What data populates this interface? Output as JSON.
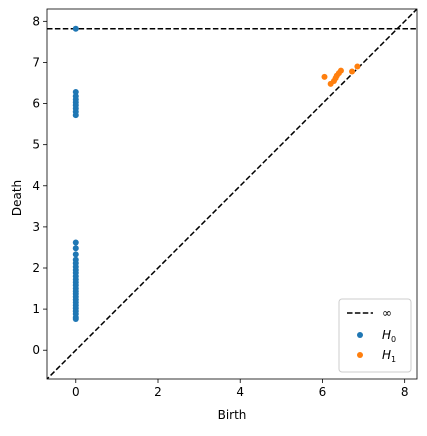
{
  "chart_data": {
    "type": "scatter",
    "title": "",
    "xlabel": "Birth",
    "ylabel": "Death",
    "xlim": [
      -0.7,
      8.3
    ],
    "ylim": [
      -0.7,
      8.3
    ],
    "xticks": [
      0,
      2,
      4,
      6,
      8
    ],
    "yticks": [
      0,
      1,
      2,
      3,
      4,
      5,
      6,
      7,
      8
    ],
    "xtick_labels": [
      "0",
      "2",
      "4",
      "6",
      "8"
    ],
    "ytick_labels": [
      "0",
      "1",
      "2",
      "3",
      "4",
      "5",
      "6",
      "7",
      "8"
    ],
    "infinity_line": {
      "y": 7.82,
      "label": "∞",
      "color": "#000000",
      "style": "dashed"
    },
    "diagonal": {
      "color": "#000000",
      "style": "dashed"
    },
    "grid": false,
    "legend_position": "bottom-right",
    "series": [
      {
        "name": "H0",
        "label_main": "H",
        "label_sub": "0",
        "color": "#1f77b4",
        "points": [
          {
            "x": 0,
            "y": 7.82
          },
          {
            "x": 0,
            "y": 6.28
          },
          {
            "x": 0,
            "y": 6.18
          },
          {
            "x": 0,
            "y": 6.1
          },
          {
            "x": 0,
            "y": 6.03
          },
          {
            "x": 0,
            "y": 5.96
          },
          {
            "x": 0,
            "y": 5.88
          },
          {
            "x": 0,
            "y": 5.8
          },
          {
            "x": 0,
            "y": 5.72
          },
          {
            "x": 0,
            "y": 2.62
          },
          {
            "x": 0,
            "y": 2.48
          },
          {
            "x": 0,
            "y": 2.33
          },
          {
            "x": 0,
            "y": 2.2
          },
          {
            "x": 0,
            "y": 2.12
          },
          {
            "x": 0,
            "y": 2.03
          },
          {
            "x": 0,
            "y": 1.95
          },
          {
            "x": 0,
            "y": 1.88
          },
          {
            "x": 0,
            "y": 1.8
          },
          {
            "x": 0,
            "y": 1.72
          },
          {
            "x": 0,
            "y": 1.65
          },
          {
            "x": 0,
            "y": 1.58
          },
          {
            "x": 0,
            "y": 1.5
          },
          {
            "x": 0,
            "y": 1.43
          },
          {
            "x": 0,
            "y": 1.37
          },
          {
            "x": 0,
            "y": 1.3
          },
          {
            "x": 0,
            "y": 1.23
          },
          {
            "x": 0,
            "y": 1.16
          },
          {
            "x": 0,
            "y": 1.09
          },
          {
            "x": 0,
            "y": 1.02
          },
          {
            "x": 0,
            "y": 0.95
          },
          {
            "x": 0,
            "y": 0.88
          },
          {
            "x": 0,
            "y": 0.8
          },
          {
            "x": 0,
            "y": 0.76
          }
        ]
      },
      {
        "name": "H1",
        "label_main": "H",
        "label_sub": "1",
        "color": "#ff7f0e",
        "points": [
          {
            "x": 6.05,
            "y": 6.65
          },
          {
            "x": 6.2,
            "y": 6.48
          },
          {
            "x": 6.28,
            "y": 6.55
          },
          {
            "x": 6.32,
            "y": 6.62
          },
          {
            "x": 6.35,
            "y": 6.68
          },
          {
            "x": 6.4,
            "y": 6.74
          },
          {
            "x": 6.45,
            "y": 6.8
          },
          {
            "x": 6.72,
            "y": 6.78
          },
          {
            "x": 6.85,
            "y": 6.9
          }
        ]
      }
    ]
  }
}
